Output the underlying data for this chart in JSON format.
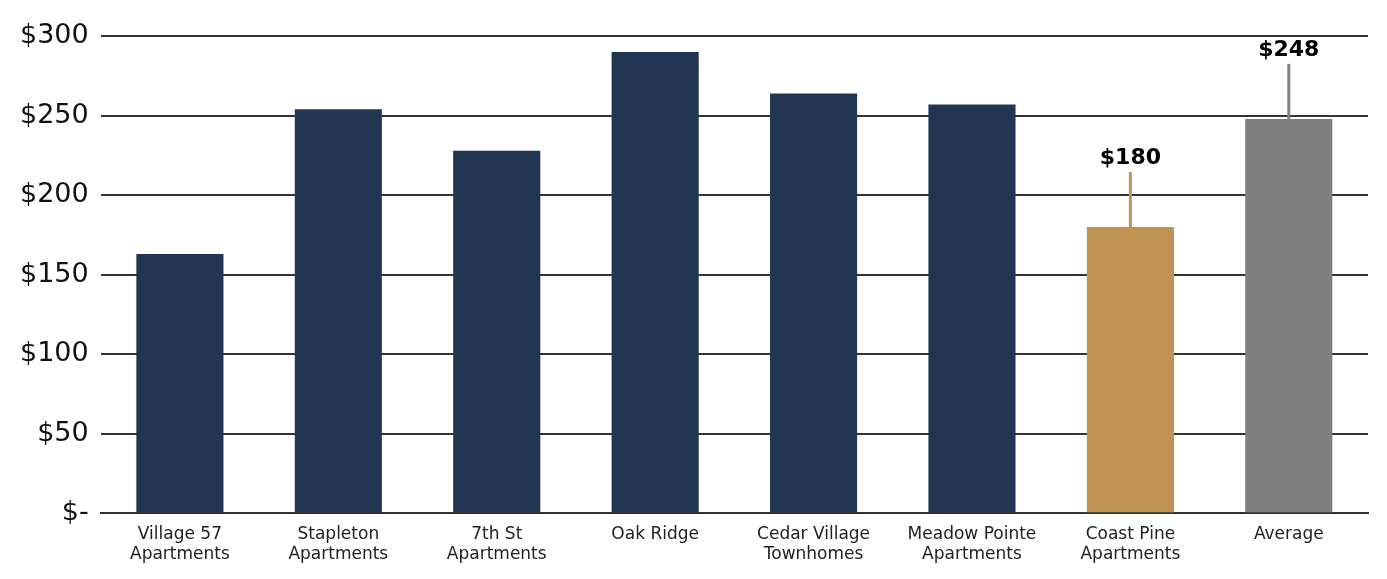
{
  "chart_data": {
    "type": "bar",
    "categories": [
      "Village 57\nApartments",
      "Stapleton\nApartments",
      "7th St\nApartments",
      "Oak Ridge",
      "Cedar Village\nTownhomes",
      "Meadow Pointe\nApartments",
      "Coast Pine\nApartments",
      "Average"
    ],
    "values": [
      163,
      254,
      228,
      290,
      264,
      257,
      180,
      248
    ],
    "colors": [
      "#223654",
      "#223654",
      "#223654",
      "#223654",
      "#223654",
      "#223654",
      "#c09352",
      "#7f7f7f"
    ],
    "value_labels": [
      null,
      null,
      null,
      null,
      null,
      null,
      "$180",
      "$248"
    ],
    "ylim": [
      0,
      300
    ],
    "yticks": [
      {
        "value": 0,
        "label": "$-"
      },
      {
        "value": 50,
        "label": "$50"
      },
      {
        "value": 100,
        "label": "$100"
      },
      {
        "value": 150,
        "label": "$150"
      },
      {
        "value": 200,
        "label": "$200"
      },
      {
        "value": 250,
        "label": "$250"
      },
      {
        "value": 300,
        "label": "$300"
      }
    ],
    "grid": "y",
    "legend": false
  }
}
